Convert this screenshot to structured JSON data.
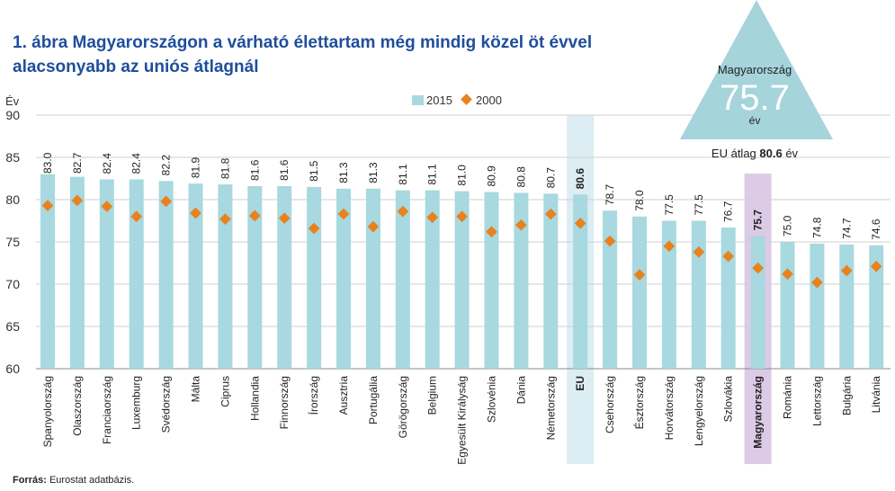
{
  "title": "1. ábra Magyarországon a várható élettartam még mindig közel öt évvel alacsonyabb az uniós átlagnál",
  "source": {
    "label": "Forrás:",
    "text": "Eurostat adatbázis."
  },
  "callout": {
    "country": "Magyarország",
    "value": "75.7",
    "unit": "év"
  },
  "eu_average": {
    "prefix": "EU átlag",
    "value": "80.6",
    "suffix": "év"
  },
  "colors": {
    "bar": "#a8d8e0",
    "marker": "#e8821e",
    "highlight_eu": "#dcedf3",
    "highlight_hu": "#dccbe6",
    "triangle": "#a5d4db",
    "title": "#1f4e9c"
  },
  "chart_data": {
    "type": "bar",
    "ylabel": "Év",
    "ylim": [
      60,
      90
    ],
    "yticks": [
      60,
      65,
      70,
      75,
      80,
      85,
      90
    ],
    "grid": true,
    "legend_position": "top",
    "categories": [
      "Spanyolország",
      "Olaszország",
      "Franciaország",
      "Luxemburg",
      "Svédország",
      "Málta",
      "Ciprus",
      "Hollandia",
      "Finnország",
      "Írország",
      "Ausztria",
      "Portugália",
      "Görögország",
      "Belgium",
      "Egyesült Királyság",
      "Szlovénia",
      "Dánia",
      "Németország",
      "EU",
      "Csehország",
      "Észtország",
      "Horvátország",
      "Lengyelország",
      "Szlovákia",
      "Magyarország",
      "Románia",
      "Lettország",
      "Bulgária",
      "Litvánia"
    ],
    "highlight": [
      "EU",
      "Magyarország"
    ],
    "value_labels": [
      "83.0",
      "82.7",
      "82.4",
      "82.4",
      "82.2",
      "81.9",
      "81.8",
      "81.6",
      "81.6",
      "81.5",
      "81.3",
      "81.3",
      "81.1",
      "81.1",
      "81.0",
      "80.9",
      "80.8",
      "80.7",
      "80.6",
      "78.7",
      "78.0",
      "77.5",
      "77.5",
      "76.7",
      "75.7",
      "75.0",
      "74.8",
      "74.7",
      "74.6"
    ],
    "series": [
      {
        "name": "2015",
        "kind": "bar",
        "values": [
          83.0,
          82.7,
          82.4,
          82.4,
          82.2,
          81.9,
          81.8,
          81.6,
          81.6,
          81.5,
          81.3,
          81.3,
          81.1,
          81.1,
          81.0,
          80.9,
          80.8,
          80.7,
          80.6,
          78.7,
          78.0,
          77.5,
          77.5,
          76.7,
          75.7,
          75.0,
          74.8,
          74.7,
          74.6
        ]
      },
      {
        "name": "2000",
        "kind": "marker",
        "values": [
          79.3,
          79.9,
          79.2,
          78.0,
          79.8,
          78.4,
          77.7,
          78.1,
          77.8,
          76.6,
          78.3,
          76.8,
          78.6,
          77.9,
          78.0,
          76.2,
          77.0,
          78.3,
          77.2,
          75.1,
          71.1,
          74.5,
          73.8,
          73.3,
          71.9,
          71.2,
          70.2,
          71.6,
          72.1
        ]
      }
    ]
  }
}
